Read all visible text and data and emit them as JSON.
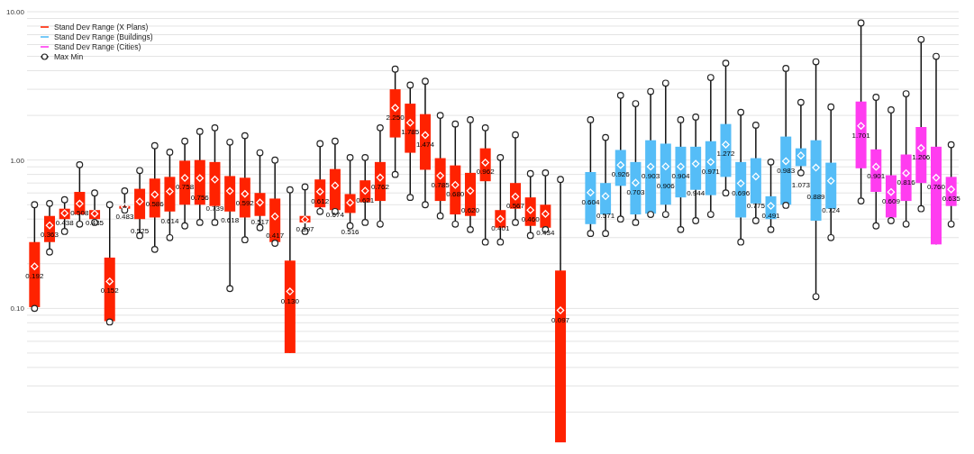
{
  "chart_data": {
    "type": "box",
    "log": "y",
    "grid": "y",
    "legend": "top left",
    "categories": [
      null,
      null,
      null,
      null,
      null,
      null,
      null,
      null,
      null,
      null,
      null,
      null,
      null,
      null,
      null,
      null,
      null,
      null,
      null,
      null,
      null,
      null,
      null,
      null,
      null,
      null,
      null,
      null,
      null,
      null,
      null,
      null,
      null,
      null,
      null,
      null,
      null,
      null,
      null,
      null,
      null,
      null,
      null,
      null,
      null,
      null,
      null,
      null,
      null,
      null,
      null,
      null,
      null,
      null,
      null,
      null,
      null,
      null,
      null,
      null,
      null,
      null
    ],
    "ylim": [
      0.012,
      10
    ],
    "yticks": [
      {
        "value": 0.02,
        "label": null
      },
      {
        "value": 0.03,
        "label": null
      },
      {
        "value": 0.04,
        "label": null
      },
      {
        "value": 0.05,
        "label": null
      },
      {
        "value": 0.06,
        "label": null
      },
      {
        "value": 0.07,
        "label": null
      },
      {
        "value": 0.08,
        "label": null
      },
      {
        "value": 0.09,
        "label": null
      },
      {
        "value": 0.1,
        "label": "0.10"
      },
      {
        "value": 0.2,
        "label": null
      },
      {
        "value": 0.3,
        "label": null
      },
      {
        "value": 0.4,
        "label": null
      },
      {
        "value": 0.5,
        "label": null
      },
      {
        "value": 0.6,
        "label": null
      },
      {
        "value": 0.7,
        "label": null
      },
      {
        "value": 0.8,
        "label": null
      },
      {
        "value": 0.9,
        "label": null
      },
      {
        "value": 1,
        "label": "1.00"
      },
      {
        "value": 2,
        "label": null
      },
      {
        "value": 3,
        "label": null
      },
      {
        "value": 4,
        "label": null
      },
      {
        "value": 5,
        "label": null
      },
      {
        "value": 6,
        "label": null
      },
      {
        "value": 7,
        "label": null
      },
      {
        "value": 8,
        "label": null
      },
      {
        "value": 9,
        "label": null
      },
      {
        "value": 10,
        "label": "10.00"
      }
    ],
    "series": [
      {
        "name": "Stand Dev Range (X Plans)",
        "color": "#ff2200",
        "marker": "circle",
        "boxes": [
          {
            "low": 0.1,
            "q1": 0.102,
            "median": 0.192,
            "q3": 0.28,
            "high": 0.5
          },
          {
            "low": 0.24,
            "q1": 0.28,
            "median": 0.363,
            "q3": 0.42,
            "high": 0.51
          },
          {
            "low": 0.33,
            "q1": 0.4,
            "median": 0.438,
            "q3": 0.47,
            "high": 0.54
          },
          {
            "low": 0.37,
            "q1": 0.43,
            "median": 0.508,
            "q3": 0.61,
            "high": 0.93
          },
          {
            "low": 0.38,
            "q1": 0.4,
            "median": 0.435,
            "q3": 0.46,
            "high": 0.6
          },
          {
            "low": 0.081,
            "q1": 0.082,
            "median": 0.152,
            "q3": 0.22,
            "high": 0.5
          },
          {
            "low": 0.46,
            "q1": 0.47,
            "median": 0.483,
            "q3": 0.49,
            "high": 0.62
          },
          {
            "low": 0.31,
            "q1": 0.4,
            "median": 0.525,
            "q3": 0.64,
            "high": 0.85
          },
          {
            "low": 0.25,
            "q1": 0.41,
            "median": 0.586,
            "q3": 0.75,
            "high": 1.25
          },
          {
            "low": 0.3,
            "q1": 0.45,
            "median": 0.614,
            "q3": 0.77,
            "high": 1.13
          },
          {
            "low": 0.36,
            "q1": 0.5,
            "median": 0.758,
            "q3": 0.99,
            "high": 1.34
          },
          {
            "low": 0.38,
            "q1": 0.5,
            "median": 0.756,
            "q3": 1.0,
            "high": 1.56
          },
          {
            "low": 0.38,
            "q1": 0.49,
            "median": 0.739,
            "q3": 0.97,
            "high": 1.65
          },
          {
            "low": 0.136,
            "q1": 0.45,
            "median": 0.618,
            "q3": 0.78,
            "high": 1.32
          },
          {
            "low": 0.29,
            "q1": 0.41,
            "median": 0.592,
            "q3": 0.76,
            "high": 1.46
          },
          {
            "low": 0.35,
            "q1": 0.42,
            "median": 0.517,
            "q3": 0.6,
            "high": 1.12
          },
          {
            "low": 0.275,
            "q1": 0.28,
            "median": 0.417,
            "q3": 0.55,
            "high": 1.0
          },
          {
            "low": 0.05,
            "q1": 0.05,
            "median": 0.13,
            "q3": 0.21,
            "high": 0.63
          },
          {
            "low": 0.33,
            "q1": 0.38,
            "median": 0.397,
            "q3": 0.42,
            "high": 0.66
          },
          {
            "low": 0.45,
            "q1": 0.48,
            "median": 0.612,
            "q3": 0.74,
            "high": 1.29
          },
          {
            "low": 0.45,
            "q1": 0.46,
            "median": 0.674,
            "q3": 0.87,
            "high": 1.34
          },
          {
            "low": 0.36,
            "q1": 0.44,
            "median": 0.516,
            "q3": 0.59,
            "high": 1.04
          },
          {
            "low": 0.38,
            "q1": 0.52,
            "median": 0.621,
            "q3": 0.73,
            "high": 1.04
          },
          {
            "low": 0.37,
            "q1": 0.53,
            "median": 0.762,
            "q3": 0.97,
            "high": 1.65
          },
          {
            "low": 0.8,
            "q1": 1.42,
            "median": 2.25,
            "q3": 3.0,
            "high": 4.1
          },
          {
            "low": 0.56,
            "q1": 1.12,
            "median": 1.785,
            "q3": 2.4,
            "high": 3.2
          },
          {
            "low": 0.5,
            "q1": 0.86,
            "median": 1.474,
            "q3": 2.04,
            "high": 3.4
          },
          {
            "low": 0.42,
            "q1": 0.53,
            "median": 0.785,
            "q3": 1.03,
            "high": 2.0
          },
          {
            "low": 0.37,
            "q1": 0.43,
            "median": 0.68,
            "q3": 0.92,
            "high": 1.75
          },
          {
            "low": 0.34,
            "q1": 0.42,
            "median": 0.62,
            "q3": 0.82,
            "high": 1.87
          },
          {
            "low": 0.28,
            "q1": 0.72,
            "median": 0.962,
            "q3": 1.2,
            "high": 1.65
          },
          {
            "low": 0.28,
            "q1": 0.35,
            "median": 0.401,
            "q3": 0.46,
            "high": 1.04
          },
          {
            "low": 0.38,
            "q1": 0.47,
            "median": 0.567,
            "q3": 0.7,
            "high": 1.48
          },
          {
            "low": 0.31,
            "q1": 0.36,
            "median": 0.46,
            "q3": 0.56,
            "high": 0.81
          },
          {
            "low": 0.34,
            "q1": 0.35,
            "median": 0.434,
            "q3": 0.5,
            "high": 0.82
          },
          {
            "low": 0.0125,
            "q1": 0.0125,
            "median": 0.097,
            "q3": 0.18,
            "high": 0.74
          },
          null,
          null,
          null,
          null,
          null,
          null,
          null,
          null,
          null,
          null,
          null,
          null,
          null,
          null,
          null,
          null,
          null,
          null,
          null,
          null,
          null,
          null,
          null,
          null,
          null,
          null
        ],
        "value_labels": [
          "0.192",
          "0.363",
          "0.438",
          "0.508",
          "0.435",
          "0.152",
          "0.483",
          "0.525",
          "0.586",
          "0.614",
          "0.758",
          "0.756",
          "0.739",
          "0.618",
          "0.592",
          "0.517",
          "0.417",
          "0.130",
          "0.397",
          "0.612",
          "0.674",
          "0.516",
          "0.621",
          "0.762",
          "2.250",
          "1.785",
          "1.474",
          "0.785",
          "0.680",
          "0.620",
          "0.962",
          "0.401",
          "0.567",
          "0.460",
          "0.434",
          "0.097",
          null,
          null,
          null,
          null,
          null,
          null,
          null,
          null,
          null,
          null,
          null,
          null,
          null,
          null,
          null,
          null,
          null,
          null,
          null,
          null,
          null,
          null,
          null,
          null,
          null,
          null
        ]
      },
      {
        "name": "Stand Dev Range (Buildings)",
        "color": "#55bdf7",
        "marker": "circle",
        "boxes": [
          null,
          null,
          null,
          null,
          null,
          null,
          null,
          null,
          null,
          null,
          null,
          null,
          null,
          null,
          null,
          null,
          null,
          null,
          null,
          null,
          null,
          null,
          null,
          null,
          null,
          null,
          null,
          null,
          null,
          null,
          null,
          null,
          null,
          null,
          null,
          null,
          null,
          {
            "low": 0.32,
            "q1": 0.37,
            "median": 0.604,
            "q3": 0.83,
            "high": 1.87
          },
          {
            "low": 0.32,
            "q1": 0.43,
            "median": 0.571,
            "q3": 0.7,
            "high": 1.42
          },
          {
            "low": 0.4,
            "q1": 0.67,
            "median": 0.926,
            "q3": 1.17,
            "high": 2.73
          },
          {
            "low": 0.38,
            "q1": 0.43,
            "median": 0.703,
            "q3": 0.97,
            "high": 2.4
          },
          {
            "low": 0.43,
            "q1": 0.435,
            "median": 0.903,
            "q3": 1.36,
            "high": 2.9
          },
          {
            "low": 0.43,
            "q1": 0.5,
            "median": 0.906,
            "q3": 1.29,
            "high": 3.3
          },
          {
            "low": 0.34,
            "q1": 0.56,
            "median": 0.904,
            "q3": 1.23,
            "high": 1.87
          },
          {
            "low": 0.39,
            "q1": 0.63,
            "median": 0.944,
            "q3": 1.23,
            "high": 1.95
          },
          {
            "low": 0.43,
            "q1": 0.58,
            "median": 0.971,
            "q3": 1.34,
            "high": 3.6
          },
          {
            "low": 0.6,
            "q1": 0.77,
            "median": 1.272,
            "q3": 1.75,
            "high": 4.5
          },
          {
            "low": 0.28,
            "q1": 0.41,
            "median": 0.696,
            "q3": 0.97,
            "high": 2.1
          },
          {
            "low": 0.39,
            "q1": 0.51,
            "median": 0.775,
            "q3": 1.03,
            "high": 1.72
          },
          {
            "low": 0.34,
            "q1": 0.4,
            "median": 0.491,
            "q3": 0.57,
            "high": 0.97
          },
          {
            "low": 0.495,
            "q1": 0.5,
            "median": 0.983,
            "q3": 1.44,
            "high": 4.15
          },
          {
            "low": 0.82,
            "q1": 0.91,
            "median": 1.073,
            "q3": 1.2,
            "high": 2.45
          },
          {
            "low": 0.12,
            "q1": 0.39,
            "median": 0.889,
            "q3": 1.36,
            "high": 4.6
          },
          {
            "low": 0.3,
            "q1": 0.47,
            "median": 0.724,
            "q3": 0.96,
            "high": 2.28
          },
          null,
          null,
          null,
          null,
          null,
          null,
          null,
          null
        ],
        "value_labels": [
          null,
          null,
          null,
          null,
          null,
          null,
          null,
          null,
          null,
          null,
          null,
          null,
          null,
          null,
          null,
          null,
          null,
          null,
          null,
          null,
          null,
          null,
          null,
          null,
          null,
          null,
          null,
          null,
          null,
          null,
          null,
          null,
          null,
          null,
          null,
          null,
          null,
          "0.604",
          "0.571",
          "0.926",
          "0.703",
          "0.903",
          "0.906",
          "0.904",
          "0.944",
          "0.971",
          "1.272",
          "0.696",
          "0.775",
          "0.491",
          "0.983",
          "1.073",
          "0.889",
          "0.724",
          null,
          null,
          null,
          null,
          null,
          null,
          null,
          null
        ]
      },
      {
        "name": "Stand Dev Range (Cities)",
        "color": "#ff3cf0",
        "marker": "circle",
        "boxes": [
          null,
          null,
          null,
          null,
          null,
          null,
          null,
          null,
          null,
          null,
          null,
          null,
          null,
          null,
          null,
          null,
          null,
          null,
          null,
          null,
          null,
          null,
          null,
          null,
          null,
          null,
          null,
          null,
          null,
          null,
          null,
          null,
          null,
          null,
          null,
          null,
          null,
          null,
          null,
          null,
          null,
          null,
          null,
          null,
          null,
          null,
          null,
          null,
          null,
          null,
          null,
          null,
          null,
          null,
          null,
          {
            "low": 0.53,
            "q1": 0.88,
            "median": 1.701,
            "q3": 2.48,
            "high": 8.4
          },
          {
            "low": 0.36,
            "q1": 0.61,
            "median": 0.901,
            "q3": 1.18,
            "high": 2.65
          },
          {
            "low": 0.39,
            "q1": 0.41,
            "median": 0.609,
            "q3": 0.79,
            "high": 2.18
          },
          {
            "low": 0.37,
            "q1": 0.53,
            "median": 0.816,
            "q3": 1.09,
            "high": 2.8
          },
          {
            "low": 0.47,
            "q1": 0.7,
            "median": 1.206,
            "q3": 1.67,
            "high": 6.5
          },
          {
            "low": 0.27,
            "q1": 0.27,
            "median": 0.76,
            "q3": 1.23,
            "high": 5.0
          },
          {
            "low": 0.37,
            "q1": 0.49,
            "median": 0.635,
            "q3": 0.77,
            "high": 1.27
          }
        ],
        "value_labels": [
          null,
          null,
          null,
          null,
          null,
          null,
          null,
          null,
          null,
          null,
          null,
          null,
          null,
          null,
          null,
          null,
          null,
          null,
          null,
          null,
          null,
          null,
          null,
          null,
          null,
          null,
          null,
          null,
          null,
          null,
          null,
          null,
          null,
          null,
          null,
          null,
          null,
          null,
          null,
          null,
          null,
          null,
          null,
          null,
          null,
          null,
          null,
          null,
          null,
          null,
          null,
          null,
          null,
          null,
          null,
          "1.701",
          "0.901",
          "0.609",
          "0.816",
          "1.206",
          "0.760",
          "0.635"
        ]
      }
    ],
    "annotations": [
      "Max Min"
    ]
  }
}
